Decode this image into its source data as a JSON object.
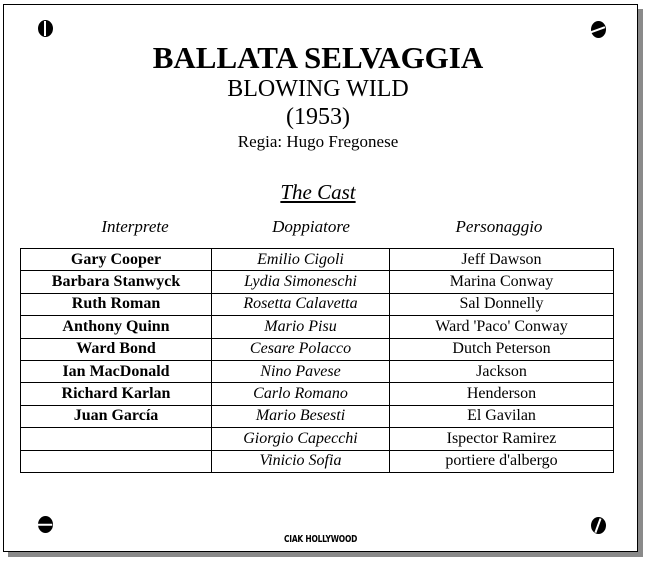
{
  "title": "BALLATA SELVAGGIA",
  "original_title": "BLOWING WILD",
  "year": "(1953)",
  "director": "Regia: Hugo Fregonese",
  "section": "The Cast",
  "headers": [
    "Interprete",
    "Doppiatore",
    "Personaggio"
  ],
  "rows": [
    [
      "Gary Cooper",
      "Emilio Cigoli",
      "Jeff Dawson"
    ],
    [
      "Barbara Stanwyck",
      "Lydia Simoneschi",
      "Marina Conway"
    ],
    [
      "Ruth Roman",
      "Rosetta Calavetta",
      "Sal Donnelly"
    ],
    [
      "Anthony Quinn",
      "Mario Pisu",
      "Ward 'Paco' Conway"
    ],
    [
      "Ward Bond",
      "Cesare Polacco",
      "Dutch Peterson"
    ],
    [
      "Ian MacDonald",
      "Nino Pavese",
      "Jackson"
    ],
    [
      "Richard Karlan",
      "Carlo Romano",
      "Henderson"
    ],
    [
      "Juan García",
      "Mario Besesti",
      "El Gavilan"
    ],
    [
      "",
      "Giorgio Capecchi",
      "Ispector Ramirez"
    ],
    [
      "",
      "Vinicio Sofia",
      "portiere d'albergo"
    ]
  ],
  "logo": "CIAK HOLLYWOOD"
}
